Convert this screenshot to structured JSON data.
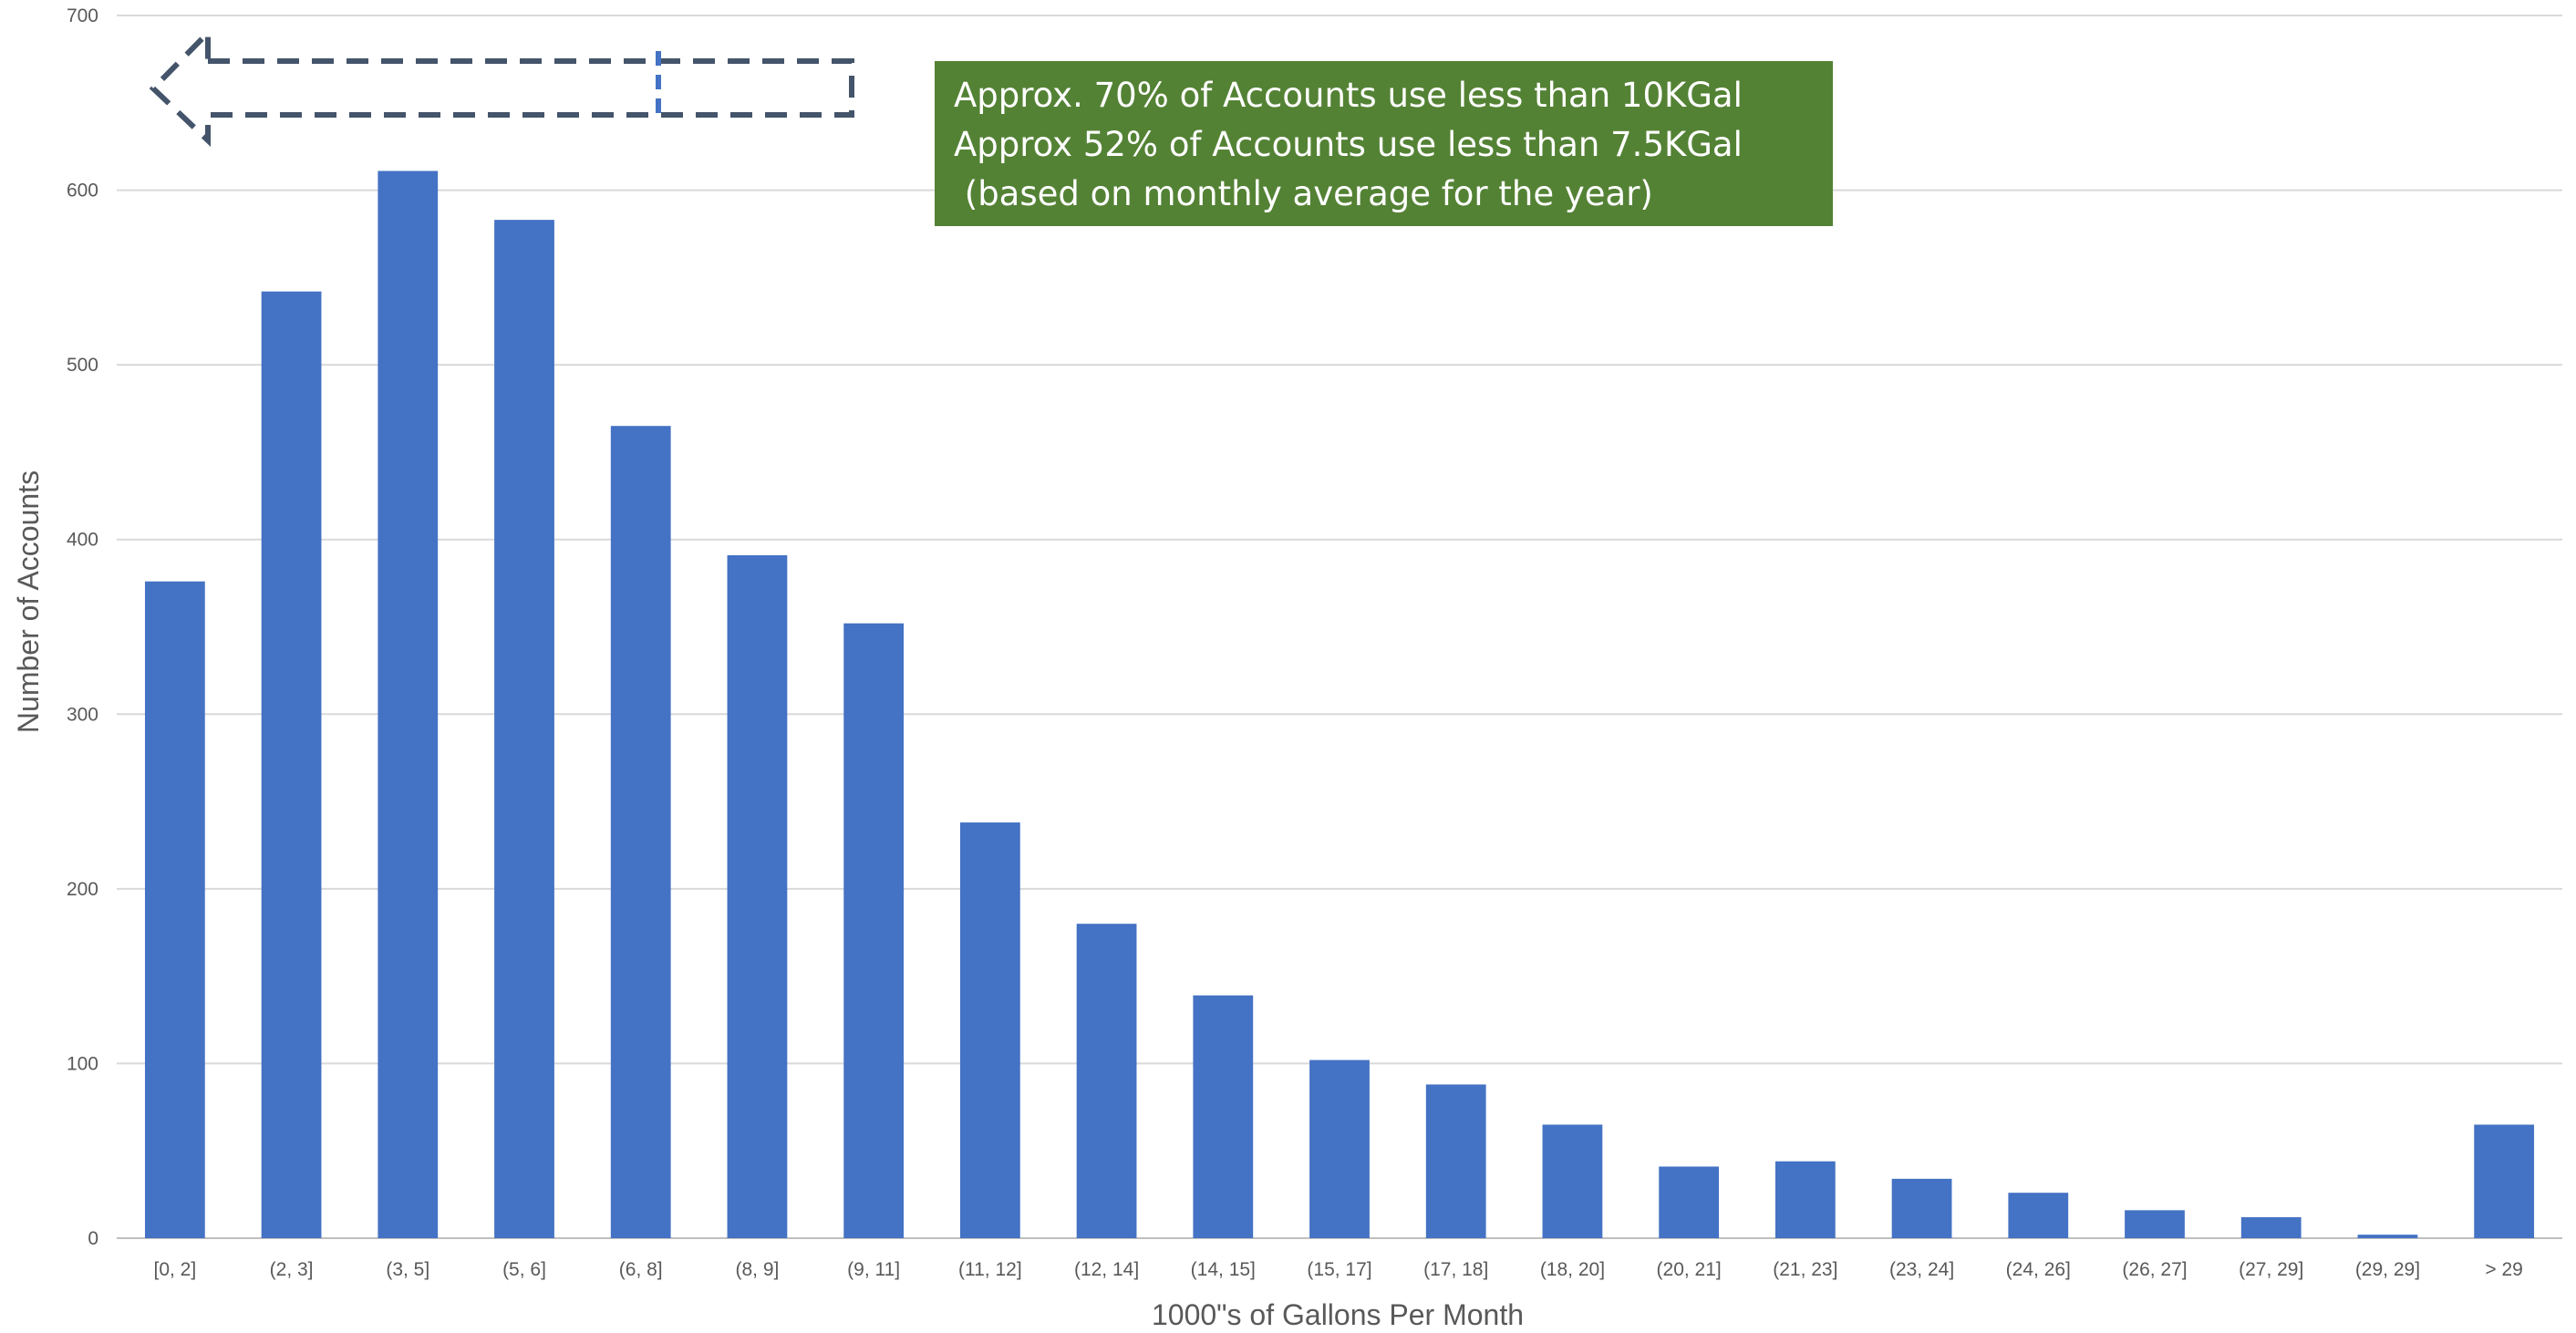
{
  "chart_data": {
    "type": "bar",
    "title": "",
    "xlabel": "1000\"s of Gallons Per Month",
    "ylabel": "Number of Accounts",
    "ylim": [
      0,
      700
    ],
    "yticks": [
      0,
      100,
      200,
      300,
      400,
      500,
      600,
      700
    ],
    "grid": true,
    "legend": "none",
    "bar_color": "#4472C4",
    "categories": [
      "[0, 2]",
      "(2, 3]",
      "(3, 5]",
      "(5, 6]",
      "(6, 8]",
      "(8, 9]",
      "(9, 11]",
      "(11, 12]",
      "(12, 14]",
      "(14, 15]",
      "(15, 17]",
      "(17, 18]",
      "(18, 20]",
      "(20, 21]",
      "(21, 23]",
      "(23, 24]",
      "(24, 26]",
      "(26, 27]",
      "(27, 29]",
      "(29, 29]",
      "> 29"
    ],
    "values": [
      376,
      542,
      611,
      583,
      465,
      391,
      352,
      238,
      180,
      139,
      102,
      88,
      65,
      41,
      44,
      34,
      26,
      16,
      12,
      2,
      65
    ],
    "annotation": {
      "lines": [
        "Approx. 70% of Accounts use less than 10KGal",
        "Approx 52% of Accounts use less than 7.5KGal",
        " (based on monthly average for the year)"
      ],
      "background": "#548235",
      "text_color": "#FFFFFF"
    },
    "arrow": {
      "direction": "left",
      "style": "dashed",
      "color": "#44546A",
      "divider_color": "#4472C4"
    }
  }
}
